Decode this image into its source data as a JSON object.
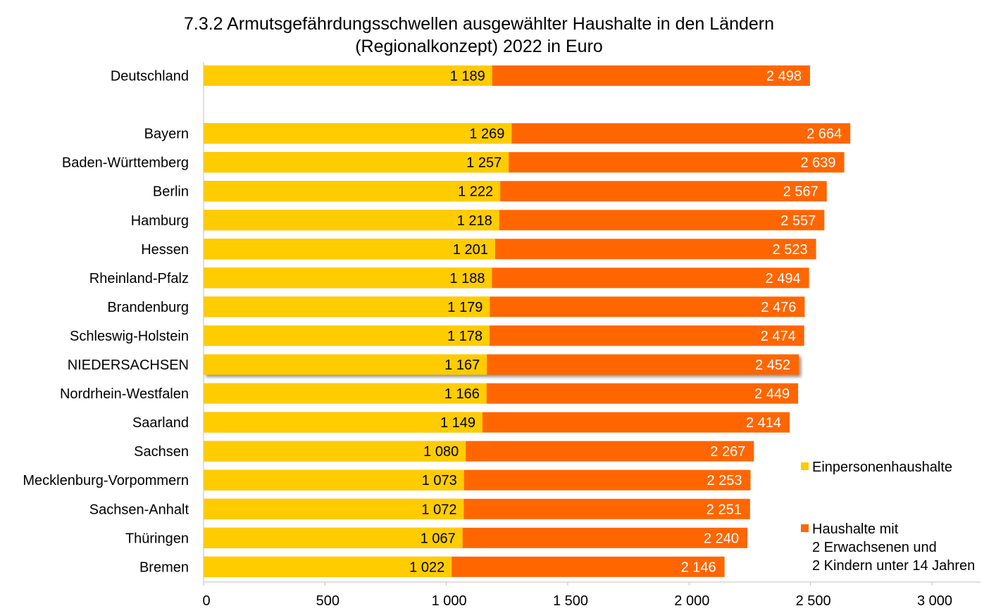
{
  "chart_data": {
    "type": "bar",
    "orientation": "horizontal",
    "stacked": false,
    "overlay": true,
    "title": "7.3.2 Armutsgefährdungsschwellen ausgewählter Haushalte in den Ländern",
    "subtitle": "(Regionalkonzept) 2022 in Euro",
    "categories": [
      "Deutschland",
      "",
      "Bayern",
      "Baden-Württemberg",
      "Berlin",
      "Hamburg",
      "Hessen",
      "Rheinland-Pfalz",
      "Brandenburg",
      "Schleswig-Holstein",
      "NIEDERSACHSEN",
      "Nordrhein-Westfalen",
      "Saarland",
      "Sachsen",
      "Mecklenburg-Vorpommern",
      "Sachsen-Anhalt",
      "Thüringen",
      "Bremen"
    ],
    "highlight_category": "NIEDERSACHSEN",
    "series": [
      {
        "name": "Einpersonenhaushalte",
        "color": "#FFCC00",
        "values": [
          1189,
          null,
          1269,
          1257,
          1222,
          1218,
          1201,
          1188,
          1179,
          1178,
          1167,
          1166,
          1149,
          1080,
          1073,
          1072,
          1067,
          1022
        ],
        "labels": [
          "1 189",
          "",
          "1 269",
          "1 257",
          "1 222",
          "1 218",
          "1 201",
          "1 188",
          "1 179",
          "1 178",
          "1 167",
          "1 166",
          "1 149",
          "1 080",
          "1 073",
          "1 072",
          "1 067",
          "1 022"
        ]
      },
      {
        "name": "Haushalte mit 2 Erwachsenen und 2 Kindern unter 14 Jahren",
        "legend_lines": [
          "Haushalte mit",
          "2 Erwachsenen und",
          "2 Kindern unter 14 Jahren"
        ],
        "color": "#FF6600",
        "values": [
          2498,
          null,
          2664,
          2639,
          2567,
          2557,
          2523,
          2494,
          2476,
          2474,
          2452,
          2449,
          2414,
          2267,
          2253,
          2251,
          2240,
          2146
        ],
        "labels": [
          "2 498",
          "",
          "2 664",
          "2 639",
          "2 567",
          "2 557",
          "2 523",
          "2 494",
          "2 476",
          "2 474",
          "2 452",
          "2 449",
          "2 414",
          "2 267",
          "2 253",
          "2 251",
          "2 240",
          "2 146"
        ]
      }
    ],
    "xlim": [
      0,
      3000
    ],
    "xticks": [
      0,
      500,
      1000,
      1500,
      2000,
      2500,
      3000
    ],
    "xtick_labels": [
      "0",
      "500",
      "1 000",
      "1 500",
      "2 000",
      "2 500",
      "3 000"
    ],
    "grid": false,
    "legend_position": "right"
  }
}
